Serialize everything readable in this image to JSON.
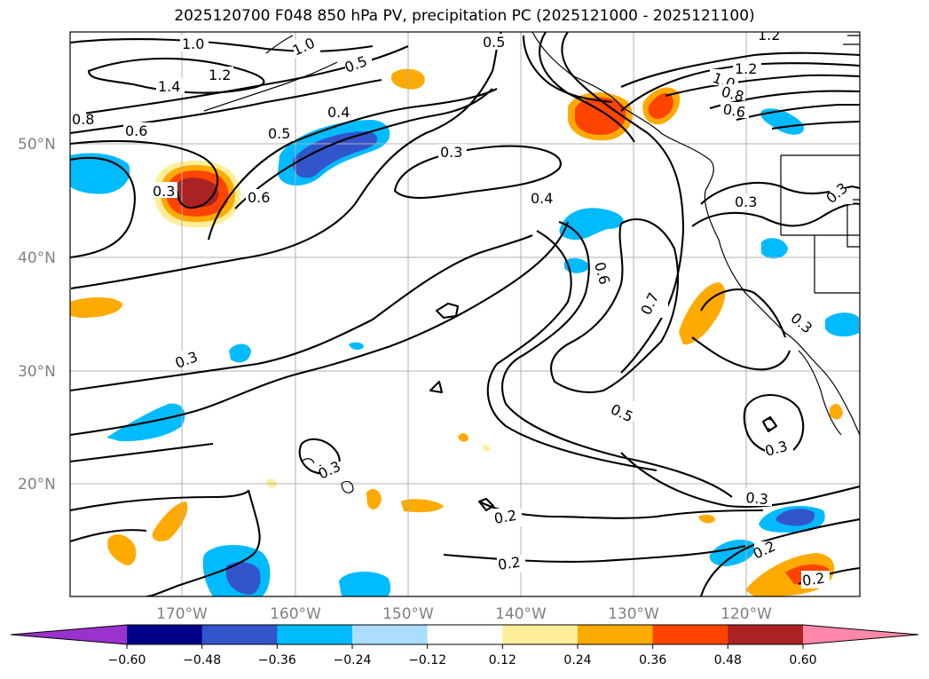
{
  "title": "2025120700 F048 850 hPa PV, precipitation PC (2025121000 - 2025121100)",
  "map": {
    "lat_labels": [
      "50°N",
      "40°N",
      "30°N",
      "20°N"
    ],
    "lon_labels": [
      "170°W",
      "160°W",
      "150°W",
      "140°W",
      "130°W",
      "120°W"
    ],
    "contour_labels": [
      "1.0",
      "1.4",
      "1.2",
      "0.8",
      "0.6",
      "0.5",
      "0.5",
      "0.4",
      "0.3",
      "0.6",
      "0.3",
      "0.4",
      "0.6",
      "0.7",
      "0.3",
      "0.3",
      "1.0",
      "1.2",
      "0.8",
      "0.6",
      "0.3",
      "0.3",
      "0.3",
      "0.5",
      "0.3",
      "0.2",
      "0.2",
      "0.3",
      "0.2",
      "0.2",
      "1.2",
      "0.5",
      "1.0"
    ]
  },
  "colorbar": {
    "ticks": [
      "−0.60",
      "−0.48",
      "−0.36",
      "−0.24",
      "−0.12",
      "0.12",
      "0.24",
      "0.36",
      "0.48",
      "0.60"
    ],
    "colors": [
      "#9933cc",
      "#000088",
      "#3355cc",
      "#00bbff",
      "#aaddff",
      "#ffffff",
      "#ffee99",
      "#ffaa00",
      "#ff4400",
      "#aa2222",
      "#ff88aa"
    ]
  }
}
